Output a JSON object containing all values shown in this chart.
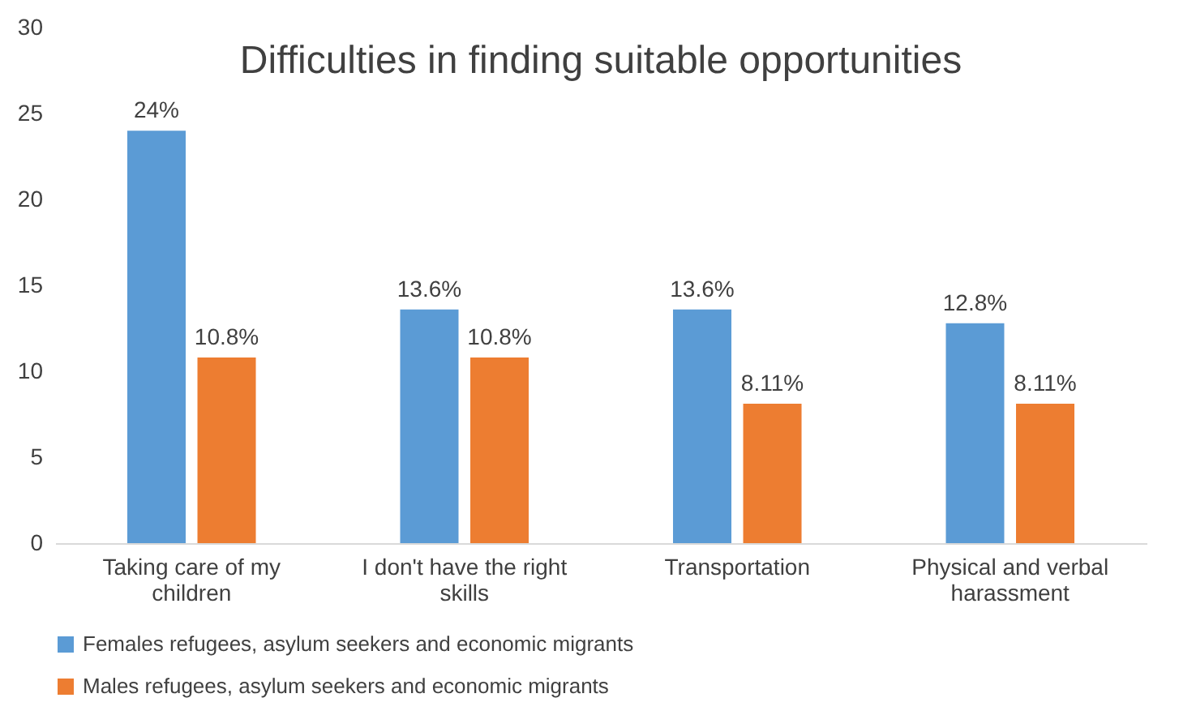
{
  "chart_data": {
    "type": "bar",
    "title": "Difficulties in finding suitable opportunities",
    "categories": [
      "Taking care of my children",
      "I don't have the right skills",
      "Transportation",
      "Physical and verbal harassment"
    ],
    "series": [
      {
        "name": "Females refugees, asylum seekers and economic migrants",
        "color": "#5b9bd5",
        "values": [
          24,
          13.6,
          13.6,
          12.8
        ],
        "value_labels": [
          "24%",
          "13.6%",
          "13.6%",
          "12.8%"
        ]
      },
      {
        "name": "Males refugees, asylum seekers and economic migrants",
        "color": "#ed7d31",
        "values": [
          10.8,
          10.8,
          8.11,
          8.11
        ],
        "value_labels": [
          "10.8%",
          "10.8%",
          "8.11%",
          "8.11%"
        ]
      }
    ],
    "ylim": [
      0,
      30
    ],
    "yticks": [
      0,
      5,
      10,
      15,
      20,
      25,
      30
    ],
    "grid": false,
    "legend": "bottom"
  }
}
